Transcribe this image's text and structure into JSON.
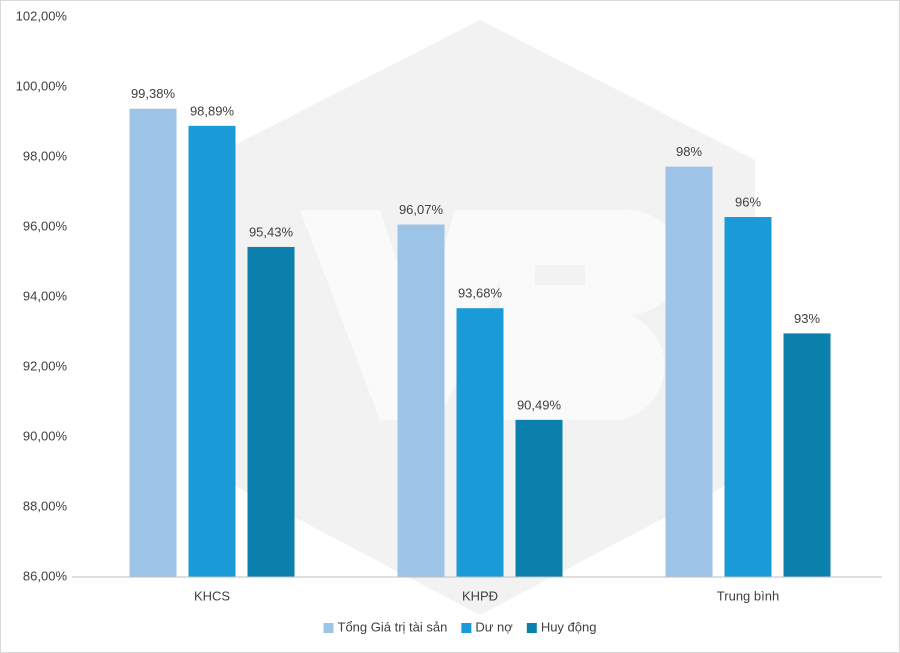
{
  "chart_data": {
    "type": "bar",
    "categories": [
      "KHCS",
      "KHPĐ",
      "Trung bình"
    ],
    "series": [
      {
        "name": "Tổng Giá trị tài sản",
        "color": "#9dc3e6",
        "values": [
          99.38,
          96.07,
          97.725
        ],
        "value_labels": [
          "99,38%",
          "96,07%",
          "98%"
        ]
      },
      {
        "name": "Dư nợ",
        "color": "#1a9bd7",
        "values": [
          98.89,
          93.68,
          96.285
        ],
        "value_labels": [
          "98,89%",
          "93,68%",
          "96%"
        ]
      },
      {
        "name": "Huy động",
        "color": "#0b80ad",
        "values": [
          95.43,
          90.49,
          92.96
        ],
        "value_labels": [
          "95,43%",
          "90,49%",
          "93%"
        ]
      }
    ],
    "ylim": [
      86,
      102
    ],
    "yticks": [
      {
        "value": 86,
        "label": "86,00%"
      },
      {
        "value": 88,
        "label": "88,00%"
      },
      {
        "value": 90,
        "label": "90,00%"
      },
      {
        "value": 92,
        "label": "92,00%"
      },
      {
        "value": 94,
        "label": "94,00%"
      },
      {
        "value": 96,
        "label": "96,00%"
      },
      {
        "value": 98,
        "label": "98,00%"
      },
      {
        "value": 100,
        "label": "100,00%"
      },
      {
        "value": 102,
        "label": "102,00%"
      }
    ],
    "grid": false,
    "legend": "bottom"
  }
}
